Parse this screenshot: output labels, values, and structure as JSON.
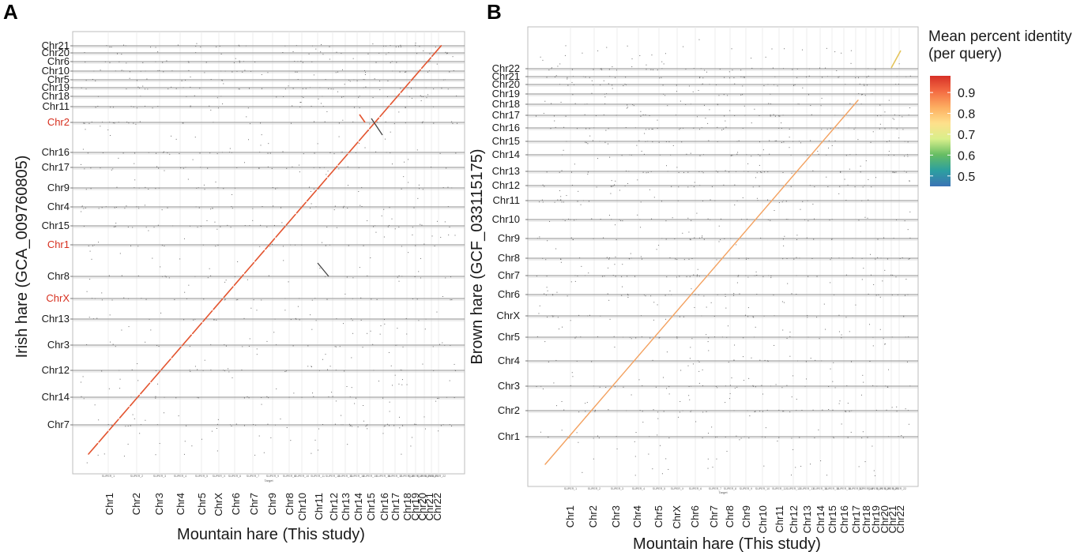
{
  "colors": {
    "frame": "#bdbdbd",
    "grid": "#e9e9e9",
    "hline": "#8e8e8e",
    "dots": "#6b6b6b",
    "diag_A": "#e3542f",
    "diag_B": "#f3a15f",
    "highlight_label": "#d7301f",
    "text": "#1a1a1a"
  },
  "chart_data": [
    {
      "type": "scatter",
      "panel_label": "A",
      "xlabel": "Mountain hare (This study)",
      "ylabel": "Irish hare (GCA_009760805)",
      "small_xlabel": "Target",
      "x_categories": [
        "Chr1",
        "Chr2",
        "Chr3",
        "Chr4",
        "Chr5",
        "ChrX",
        "Chr6",
        "Chr7",
        "Chr9",
        "Chr8",
        "Chr10",
        "Chr11",
        "Chr12",
        "Chr13",
        "Chr14",
        "Chr15",
        "Chr16",
        "Chr17",
        "Chr18",
        "Chr19",
        "Chr20",
        "Chr21",
        "Chr22"
      ],
      "x_tick_small_labels": [
        "SUPER_1",
        "SUPER_2",
        "SUPER_3",
        "SUPER_4",
        "SUPER_5",
        "SUPER_X",
        "SUPER_6",
        "SUPER_7",
        "SUPER_9",
        "SUPER_8",
        "SUPER_10",
        "SUPER_11",
        "SUPER_12",
        "SUPER_13",
        "SUPER_14",
        "SUPER_15",
        "SUPER_16",
        "SUPER_17",
        "SUPER_18",
        "SUPER_19",
        "SUPER_20",
        "SUPER_21",
        "SUPER_22"
      ],
      "y_categories": [
        "Chr7",
        "Chr14",
        "Chr12",
        "Chr3",
        "Chr13",
        "ChrX",
        "Chr8",
        "Chr1",
        "Chr15",
        "Chr4",
        "Chr9",
        "Chr17",
        "Chr16",
        "Chr2",
        "Chr11",
        "Chr18",
        "Chr19",
        "Chr5",
        "Chr10",
        "Chr6",
        "Chr20",
        "Chr21"
      ],
      "y_highlight": [
        "Chr2",
        "Chr1",
        "ChrX"
      ],
      "alignment": "diagonal"
    },
    {
      "type": "scatter",
      "panel_label": "B",
      "xlabel": "Mountain hare (This study)",
      "ylabel": "Brown hare (GCF_033115175)",
      "small_xlabel": "Target",
      "x_categories": [
        "Chr1",
        "Chr2",
        "Chr3",
        "Chr4",
        "Chr5",
        "ChrX",
        "Chr6",
        "Chr7",
        "Chr8",
        "Chr9",
        "Chr10",
        "Chr11",
        "Chr12",
        "Chr13",
        "Chr14",
        "Chr15",
        "Chr16",
        "Chr17",
        "Chr18",
        "Chr19",
        "Chr20",
        "Chr21",
        "Chr22"
      ],
      "x_tick_small_labels": [
        "SUPER_1",
        "SUPER_2",
        "SUPER_3",
        "SUPER_4",
        "SUPER_5",
        "SUPER_X",
        "SUPER_6",
        "SUPER_7",
        "SUPER_8",
        "SUPER_9",
        "SUPER_10",
        "SUPER_11",
        "SUPER_12",
        "SUPER_13",
        "SUPER_14",
        "SUPER_15",
        "SUPER_16",
        "SUPER_17",
        "SUPER_18",
        "SUPER_19",
        "SUPER_20",
        "SUPER_21",
        "SUPER_22"
      ],
      "y_categories": [
        "Chr1",
        "Chr2",
        "Chr3",
        "Chr4",
        "Chr5",
        "ChrX",
        "Chr6",
        "Chr7",
        "Chr8",
        "Chr9",
        "Chr10",
        "Chr11",
        "Chr12",
        "Chr13",
        "Chr14",
        "Chr15",
        "Chr16",
        "Chr17",
        "Chr18",
        "Chr19",
        "Chr20",
        "Chr21",
        "Chr22"
      ],
      "alignment": "diagonal"
    }
  ],
  "legend": {
    "title_line1": "Mean percent identity",
    "title_line2": "(per query)",
    "ticks": [
      "0.9",
      "0.8",
      "0.7",
      "0.6",
      "0.5"
    ],
    "tick_values": [
      0.9,
      0.8,
      0.7,
      0.6,
      0.5
    ],
    "range": [
      0.45,
      0.98
    ],
    "gradient_colors": [
      "#d73027",
      "#f46d43",
      "#fdae61",
      "#fee08b",
      "#d9ef8b",
      "#66bd63",
      "#2c9fa0",
      "#3b73b4"
    ]
  }
}
